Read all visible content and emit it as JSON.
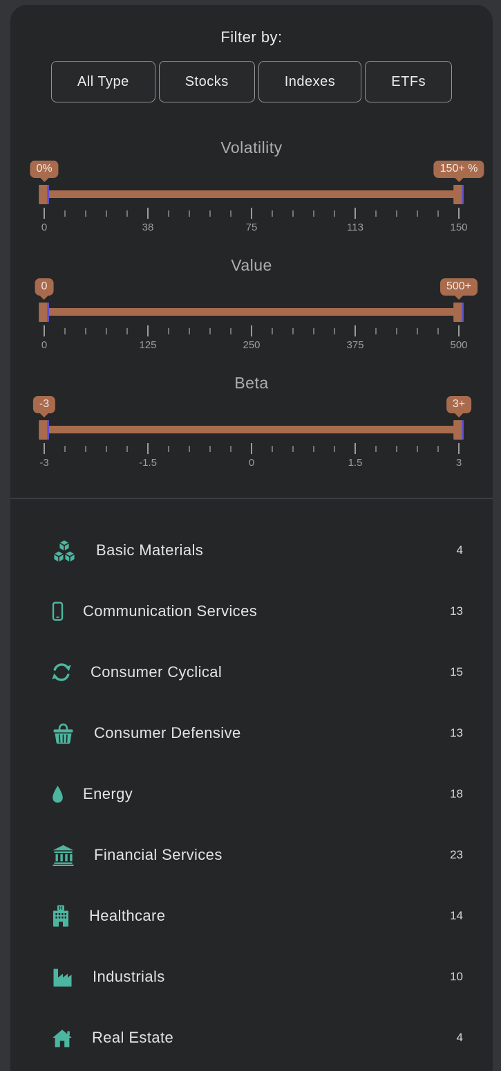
{
  "filter": {
    "title": "Filter by:",
    "buttons": [
      {
        "label": "All Type"
      },
      {
        "label": "Stocks"
      },
      {
        "label": "Indexes"
      },
      {
        "label": "ETFs"
      }
    ]
  },
  "sliders": [
    {
      "name": "volatility",
      "title": "Volatility",
      "min_tooltip": "0%",
      "max_tooltip": "150+ %",
      "tick_labels": [
        "0",
        "38",
        "75",
        "113",
        "150"
      ],
      "minor_ticks_between": 4
    },
    {
      "name": "value",
      "title": "Value",
      "min_tooltip": "0",
      "max_tooltip": "500+",
      "tick_labels": [
        "0",
        "125",
        "250",
        "375",
        "500"
      ],
      "minor_ticks_between": 4
    },
    {
      "name": "beta",
      "title": "Beta",
      "min_tooltip": "-3",
      "max_tooltip": "3+",
      "tick_labels": [
        "-3",
        "-1.5",
        "0",
        "1.5",
        "3"
      ],
      "minor_ticks_between": 4
    }
  ],
  "sectors": {
    "items": [
      {
        "icon": "cubes-icon",
        "label": "Basic Materials",
        "count": "4"
      },
      {
        "icon": "mobile-icon",
        "label": "Communication Services",
        "count": "13"
      },
      {
        "icon": "refresh-icon",
        "label": "Consumer Cyclical",
        "count": "15"
      },
      {
        "icon": "basket-icon",
        "label": "Consumer Defensive",
        "count": "13"
      },
      {
        "icon": "droplet-icon",
        "label": "Energy",
        "count": "18"
      },
      {
        "icon": "bank-icon",
        "label": "Financial Services",
        "count": "23"
      },
      {
        "icon": "hospital-icon",
        "label": "Healthcare",
        "count": "14"
      },
      {
        "icon": "factory-icon",
        "label": "Industrials",
        "count": "10"
      },
      {
        "icon": "home-icon",
        "label": "Real Estate",
        "count": "4"
      }
    ]
  },
  "colors": {
    "accent_copper": "#a96b4d",
    "accent_purple": "#5a4fd1",
    "accent_teal": "#4db6a0",
    "panel_bg": "#252628",
    "outer_bg": "#343539",
    "divider": "#3c3d40"
  }
}
